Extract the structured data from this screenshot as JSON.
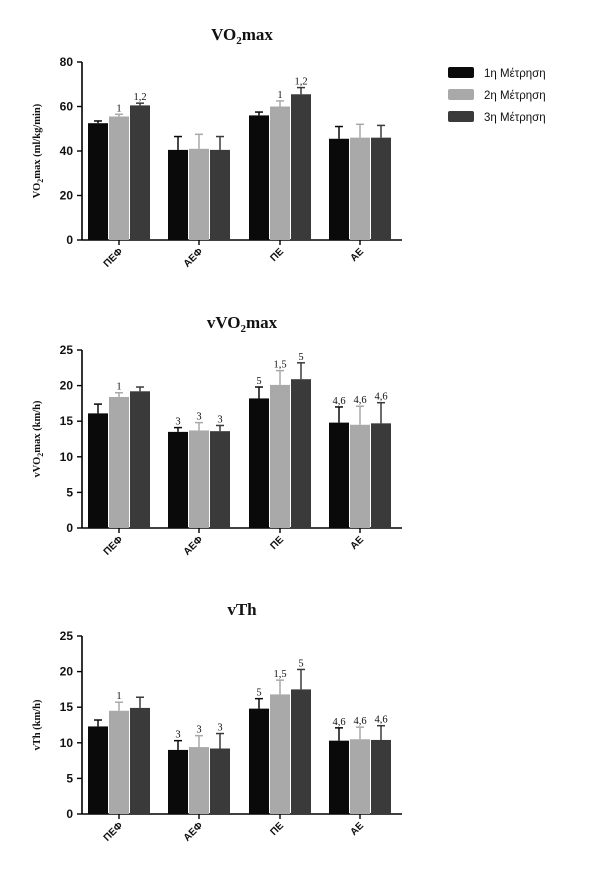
{
  "colors": {
    "series": [
      "#0a0a0a",
      "#a9a9a9",
      "#3a3a3a"
    ],
    "axis": "#000000"
  },
  "legend": [
    "1η Μέτρηση",
    "2η Μέτρηση",
    "3η Μέτρηση"
  ],
  "chart_data": [
    {
      "type": "bar",
      "title_main": "VO",
      "title_sub": "2",
      "title_tail": "max",
      "ylabel_main": "VO",
      "ylabel_sub": "2",
      "ylabel_tail": "max (ml/kg/min)",
      "xlabel": "",
      "ylim": [
        0,
        80
      ],
      "yticks": [
        0,
        20,
        40,
        60,
        80
      ],
      "categories": [
        "ΠΕΦ",
        "ΑΕΦ",
        "ΠΕ",
        "ΑΕ"
      ],
      "series": [
        {
          "name": "1η Μέτρηση",
          "values": [
            52.5,
            40.5,
            56,
            45.5
          ],
          "errors": [
            1,
            6,
            1.5,
            5.5
          ],
          "annotations": [
            "",
            "",
            "",
            ""
          ]
        },
        {
          "name": "2η Μέτρηση",
          "values": [
            55.5,
            41,
            60,
            46
          ],
          "errors": [
            1,
            6.5,
            2.5,
            6
          ],
          "annotations": [
            "1",
            "",
            "1",
            ""
          ]
        },
        {
          "name": "3η Μέτρηση",
          "values": [
            60.5,
            40.5,
            65.5,
            46
          ],
          "errors": [
            1,
            6,
            3,
            5.5
          ],
          "annotations": [
            "1,2",
            "",
            "1,2",
            ""
          ]
        }
      ]
    },
    {
      "type": "bar",
      "title_main": "vVO",
      "title_sub": "2",
      "title_tail": "max",
      "ylabel_main": "vVO",
      "ylabel_sub": "2",
      "ylabel_tail": "max (km/h)",
      "xlabel": "",
      "ylim": [
        0,
        25
      ],
      "yticks": [
        0,
        5,
        10,
        15,
        20,
        25
      ],
      "categories": [
        "ΠΕΦ",
        "ΑΕΦ",
        "ΠΕ",
        "ΑΕ"
      ],
      "series": [
        {
          "name": "1η Μέτρηση",
          "values": [
            16.1,
            13.5,
            18.2,
            14.8
          ],
          "errors": [
            1.3,
            0.6,
            1.6,
            2.2
          ],
          "annotations": [
            "",
            "3",
            "5",
            "4,6"
          ]
        },
        {
          "name": "2η Μέτρηση",
          "values": [
            18.4,
            13.7,
            20.1,
            14.5
          ],
          "errors": [
            0.6,
            1.1,
            2.0,
            2.6
          ],
          "annotations": [
            "1",
            "3",
            "1,5",
            "4,6"
          ]
        },
        {
          "name": "3η Μέτρηση",
          "values": [
            19.2,
            13.6,
            20.9,
            14.7
          ],
          "errors": [
            0.6,
            0.8,
            2.3,
            2.9
          ],
          "annotations": [
            "",
            "3",
            "5",
            "4,6"
          ]
        }
      ]
    },
    {
      "type": "bar",
      "title_main": "vTh",
      "title_sub": "",
      "title_tail": "",
      "ylabel_main": "vTh (km/h)",
      "ylabel_sub": "",
      "ylabel_tail": "",
      "xlabel": "",
      "ylim": [
        0,
        25
      ],
      "yticks": [
        0,
        5,
        10,
        15,
        20,
        25
      ],
      "categories": [
        "ΠΕΦ",
        "ΑΕΦ",
        "ΠΕ",
        "ΑΕ"
      ],
      "series": [
        {
          "name": "1η Μέτρηση",
          "values": [
            12.3,
            9.0,
            14.8,
            10.3
          ],
          "errors": [
            0.9,
            1.3,
            1.4,
            1.8
          ],
          "annotations": [
            "",
            "3",
            "5",
            "4,6"
          ]
        },
        {
          "name": "2η Μέτρηση",
          "values": [
            14.5,
            9.4,
            16.8,
            10.5
          ],
          "errors": [
            1.2,
            1.6,
            2.0,
            1.7
          ],
          "annotations": [
            "1",
            "3",
            "1,5",
            "4,6"
          ]
        },
        {
          "name": "3η Μέτρηση",
          "values": [
            14.9,
            9.2,
            17.5,
            10.4
          ],
          "errors": [
            1.5,
            2.1,
            2.8,
            2.0
          ],
          "annotations": [
            "",
            "3",
            "5",
            "4,6"
          ]
        }
      ]
    }
  ]
}
